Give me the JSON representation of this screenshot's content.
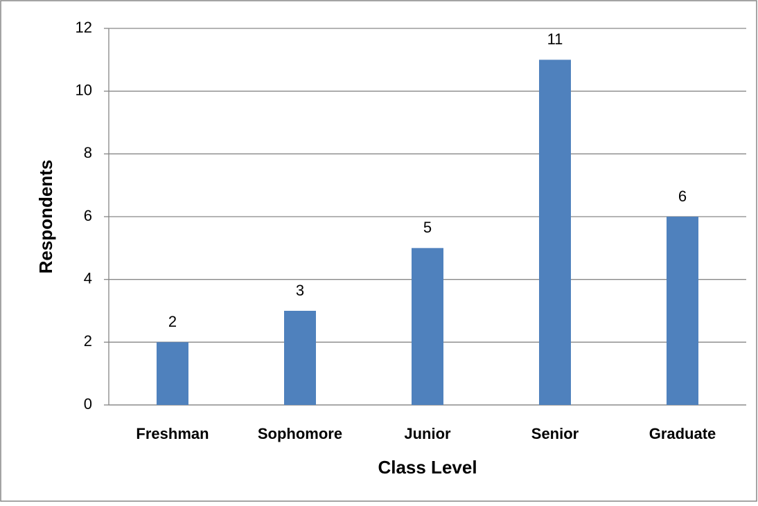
{
  "chart_data": {
    "type": "bar",
    "x_label": "Class Level",
    "y_label": "Respondents",
    "categories": [
      "Freshman",
      "Sophomore",
      "Junior",
      "Senior",
      "Graduate"
    ],
    "values": [
      2,
      3,
      5,
      11,
      6
    ],
    "color": "#4f81bd",
    "ylim": [
      0,
      12
    ],
    "yticks": [
      0,
      2,
      4,
      6,
      8,
      10,
      12
    ],
    "grid": true,
    "data_labels": true
  }
}
